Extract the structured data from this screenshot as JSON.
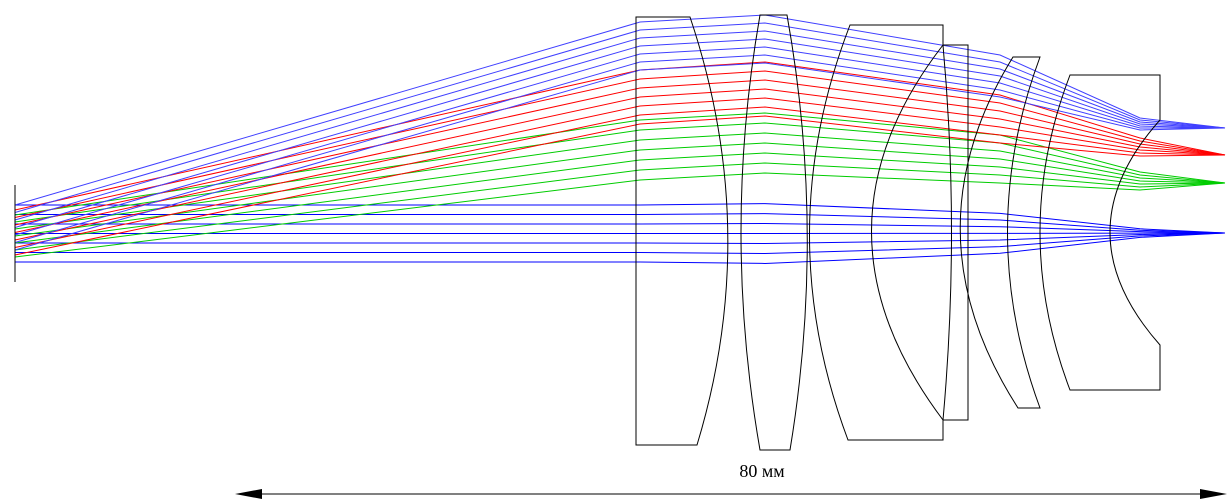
{
  "scale_label": "80 мм"
}
